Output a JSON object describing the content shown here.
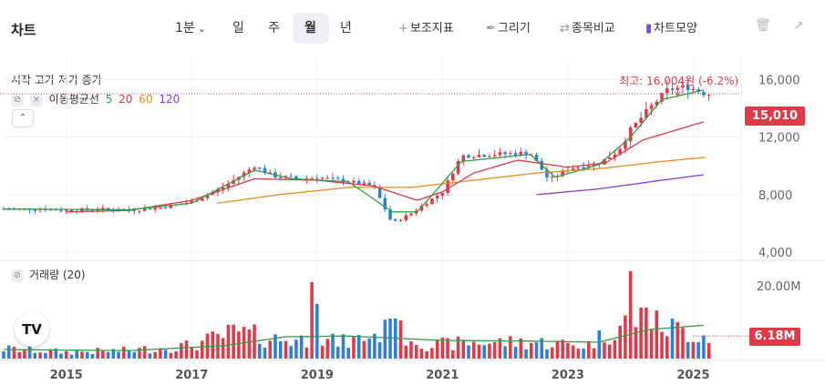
{
  "toolbar": {
    "title": "차트",
    "interval": "1분",
    "period_day": "일",
    "period_week": "주",
    "period_month": "월",
    "period_year": "년",
    "indicator": "보조지표",
    "draw": "그리기",
    "compare": "종목비교",
    "chart_style": "차트모양"
  },
  "legend": {
    "ohlc": "시작 고가 저가 종가",
    "ma_label": "이동평균선",
    "ma_periods": [
      "5",
      "20",
      "60",
      "120"
    ],
    "volume_label": "거래량 (20)"
  },
  "colors": {
    "up": "#e03a48",
    "down": "#2f7ddb",
    "ma5": "#2ea043",
    "ma20": "#d93a45",
    "ma60": "#f08a1e",
    "ma120": "#8e3ad4",
    "vol_ma": "#2ea043"
  },
  "annotations": {
    "max_label": "최고: 16,004원  (-6.2%)"
  },
  "price_axis": {
    "ticks": [
      "16,000",
      "12,000",
      "8,000",
      "4,000"
    ],
    "current_price": "15,010"
  },
  "volume_axis": {
    "ticks": [
      "20.00M"
    ],
    "current_volume": "6.18M"
  },
  "x_axis": {
    "ticks": [
      "2015",
      "2017",
      "2019",
      "2021",
      "2023",
      "2025"
    ]
  },
  "chart_data": {
    "type": "candlestick",
    "interval": "monthly",
    "price_range": [
      3500,
      17600
    ],
    "volume_range": [
      0,
      24000000
    ],
    "x_range": [
      2014.0,
      2025.75
    ],
    "last_close": 15010,
    "last_volume": 6180000,
    "max_high": 16004,
    "close_anchors": [
      [
        2014.0,
        7000
      ],
      [
        2014.6,
        7000
      ],
      [
        2015.0,
        6900
      ],
      [
        2015.5,
        7000
      ],
      [
        2016.0,
        6900
      ],
      [
        2016.5,
        7100
      ],
      [
        2017.0,
        7500
      ],
      [
        2017.5,
        8500
      ],
      [
        2018.0,
        10000
      ],
      [
        2018.3,
        9300
      ],
      [
        2018.7,
        9100
      ],
      [
        2019.0,
        9200
      ],
      [
        2019.5,
        8900
      ],
      [
        2019.9,
        8600
      ],
      [
        2020.2,
        6000
      ],
      [
        2020.5,
        6700
      ],
      [
        2021.0,
        8200
      ],
      [
        2021.3,
        10700
      ],
      [
        2021.8,
        10800
      ],
      [
        2022.4,
        10900
      ],
      [
        2022.7,
        9000
      ],
      [
        2023.0,
        9800
      ],
      [
        2023.5,
        10200
      ],
      [
        2023.8,
        11000
      ],
      [
        2024.0,
        12500
      ],
      [
        2024.3,
        14000
      ],
      [
        2024.6,
        15300
      ],
      [
        2024.9,
        15500
      ],
      [
        2025.2,
        15010
      ]
    ],
    "ma_anchors": {
      "ma5": [
        [
          2014.0,
          7000
        ],
        [
          2016.0,
          6950
        ],
        [
          2017.0,
          7400
        ],
        [
          2018.0,
          9700
        ],
        [
          2018.6,
          9100
        ],
        [
          2019.5,
          8900
        ],
        [
          2020.2,
          6800
        ],
        [
          2020.6,
          6800
        ],
        [
          2021.3,
          10300
        ],
        [
          2022.4,
          10800
        ],
        [
          2022.8,
          9200
        ],
        [
          2023.5,
          10100
        ],
        [
          2024.0,
          12000
        ],
        [
          2024.5,
          14600
        ],
        [
          2025.2,
          15300
        ]
      ],
      "ma20": [
        [
          2015.0,
          6800
        ],
        [
          2016.0,
          6900
        ],
        [
          2017.0,
          7600
        ],
        [
          2018.0,
          9100
        ],
        [
          2019.0,
          9000
        ],
        [
          2019.9,
          8600
        ],
        [
          2020.6,
          7600
        ],
        [
          2021.0,
          8200
        ],
        [
          2021.5,
          9500
        ],
        [
          2022.2,
          10400
        ],
        [
          2023.0,
          9900
        ],
        [
          2023.6,
          10200
        ],
        [
          2024.2,
          11800
        ],
        [
          2025.2,
          13100
        ]
      ],
      "ma60": [
        [
          2017.4,
          7400
        ],
        [
          2018.4,
          8000
        ],
        [
          2019.5,
          8500
        ],
        [
          2020.5,
          8500
        ],
        [
          2021.5,
          9000
        ],
        [
          2022.5,
          9500
        ],
        [
          2023.5,
          9800
        ],
        [
          2024.5,
          10300
        ],
        [
          2025.2,
          10600
        ]
      ],
      "ma120": [
        [
          2022.5,
          8000
        ],
        [
          2023.5,
          8400
        ],
        [
          2024.5,
          9000
        ],
        [
          2025.2,
          9400
        ]
      ]
    },
    "volume_anchors": [
      [
        2014.0,
        3000000
      ],
      [
        2015.0,
        2000000
      ],
      [
        2016.0,
        2500000
      ],
      [
        2017.0,
        4000000
      ],
      [
        2017.7,
        8000000
      ],
      [
        2018.3,
        6000000
      ],
      [
        2019.0,
        5500000
      ],
      [
        2019.5,
        5000000
      ],
      [
        2020.2,
        9000000
      ],
      [
        2020.8,
        4000000
      ],
      [
        2021.5,
        5000000
      ],
      [
        2022.5,
        5000000
      ],
      [
        2023.3,
        4000000
      ],
      [
        2024.0,
        12000000
      ],
      [
        2024.5,
        10000000
      ],
      [
        2025.2,
        7000000
      ]
    ],
    "volume_spikes": [
      [
        2018.9,
        21000000
      ],
      [
        2019.0,
        15000000
      ],
      [
        2024.0,
        24000000
      ],
      [
        2024.2,
        14000000
      ],
      [
        2020.2,
        11000000
      ]
    ],
    "volume_ma_anchors": [
      [
        2014.0,
        2500000
      ],
      [
        2016.0,
        2200000
      ],
      [
        2017.5,
        3500000
      ],
      [
        2018.5,
        6000000
      ],
      [
        2019.5,
        6200000
      ],
      [
        2021.0,
        5000000
      ],
      [
        2022.5,
        4800000
      ],
      [
        2023.5,
        4500000
      ],
      [
        2024.3,
        8000000
      ],
      [
        2025.2,
        9200000
      ]
    ]
  }
}
